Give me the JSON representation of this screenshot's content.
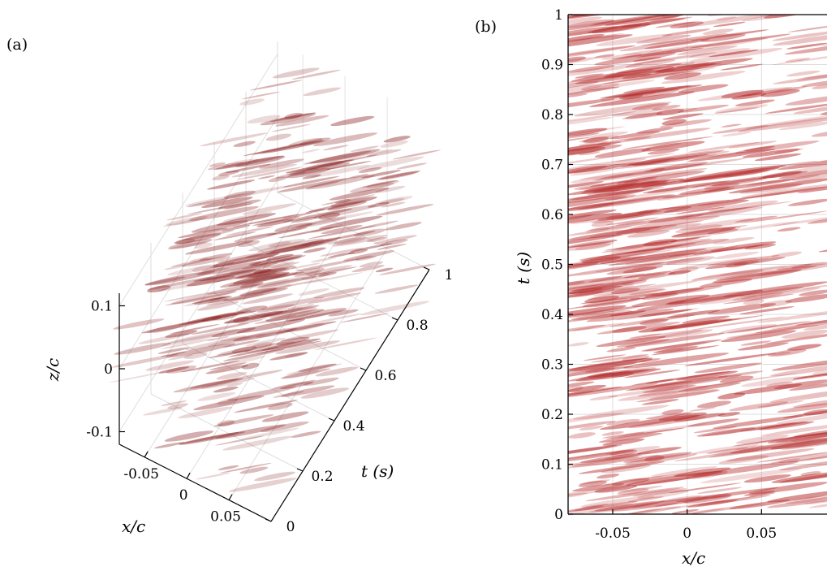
{
  "panels": {
    "a": {
      "label": "(a)"
    },
    "b": {
      "label": "(b)"
    }
  },
  "chart_data": [
    {
      "type": "scatter",
      "render": "3d-isosurface",
      "panel": "(a)",
      "xlabel": "x/c",
      "ylabel": "t (s)",
      "zlabel": "z/c",
      "xlim": [
        -0.08,
        0.1
      ],
      "ylim": [
        0,
        1
      ],
      "zlim": [
        -0.12,
        0.12
      ],
      "x_ticks": [
        "-0.05",
        "0",
        "0.05"
      ],
      "y_ticks": [
        "0",
        "0.2",
        "0.4",
        "0.6",
        "0.8",
        "1"
      ],
      "z_ticks": [
        "-0.1",
        "0",
        "0.1"
      ],
      "grid": true,
      "color": "#8b2323"
    },
    {
      "type": "heatmap",
      "render": "2d-projection",
      "panel": "(b)",
      "xlabel": "x/c",
      "ylabel": "t (s)",
      "xlim": [
        -0.08,
        0.1
      ],
      "ylim": [
        0,
        1
      ],
      "x_ticks": [
        "-0.05",
        "0",
        "0.05"
      ],
      "y_ticks": [
        "0",
        "0.1",
        "0.2",
        "0.3",
        "0.4",
        "0.5",
        "0.6",
        "0.7",
        "0.8",
        "0.9",
        "1"
      ],
      "grid": true,
      "color": "#b52a2a"
    }
  ]
}
